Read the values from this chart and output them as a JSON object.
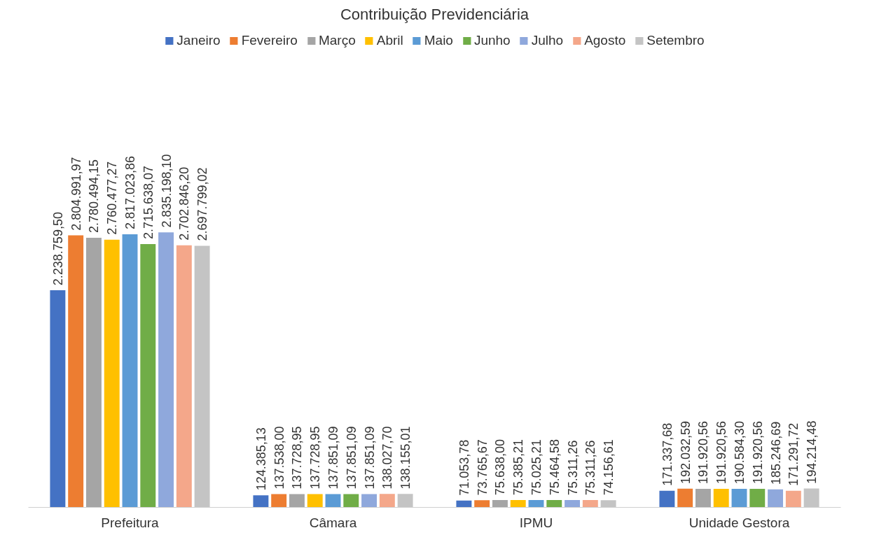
{
  "chart_data": {
    "type": "bar",
    "title": "Contribuição Previdenciária",
    "categories": [
      "Prefeitura",
      "Câmara",
      "IPMU",
      "Unidade Gestora"
    ],
    "grid": false,
    "legend": "top",
    "series": [
      {
        "name": "Janeiro",
        "color": "#4472c4",
        "values": [
          2238759.5,
          124385.13,
          71053.78,
          171337.68
        ],
        "value_labels": [
          "2.238.759,50",
          "124.385,13",
          "71.053,78",
          "171.337,68"
        ]
      },
      {
        "name": "Fevereiro",
        "color": "#ed7d31",
        "values": [
          2804991.97,
          137538.0,
          73765.67,
          192032.59
        ],
        "value_labels": [
          "2.804.991,97",
          "137.538,00",
          "73.765,67",
          "192.032,59"
        ]
      },
      {
        "name": "Março",
        "color": "#a5a5a5",
        "values": [
          2780494.15,
          137728.95,
          75638.0,
          191920.56
        ],
        "value_labels": [
          "2.780.494,15",
          "137.728,95",
          "75.638,00",
          "191.920,56"
        ]
      },
      {
        "name": "Abril",
        "color": "#ffc000",
        "values": [
          2760477.27,
          137728.95,
          75385.21,
          191920.56
        ],
        "value_labels": [
          "2.760.477,27",
          "137.728,95",
          "75.385,21",
          "191.920,56"
        ]
      },
      {
        "name": "Maio",
        "color": "#5b9bd5",
        "values": [
          2817023.86,
          137851.09,
          75025.21,
          190584.3
        ],
        "value_labels": [
          "2.817.023,86",
          "137.851,09",
          "75.025,21",
          "190.584,30"
        ]
      },
      {
        "name": "Junho",
        "color": "#70ad47",
        "values": [
          2715638.07,
          137851.09,
          75464.58,
          191920.56
        ],
        "value_labels": [
          "2.715.638,07",
          "137.851,09",
          "75.464,58",
          "191.920,56"
        ]
      },
      {
        "name": "Julho",
        "color": "#8fa8dc",
        "values": [
          2835198.1,
          137851.09,
          75311.26,
          185246.69
        ],
        "value_labels": [
          "2.835.198,10",
          "137.851,09",
          "75.311,26",
          "185.246,69"
        ]
      },
      {
        "name": "Agosto",
        "color": "#f4a78a",
        "values": [
          2702846.2,
          138027.7,
          75311.26,
          171291.72
        ],
        "value_labels": [
          "2.702.846,20",
          "138.027,70",
          "75.311,26",
          "171.291,72"
        ]
      },
      {
        "name": "Setembro",
        "color": "#c4c4c4",
        "values": [
          2697799.02,
          138155.01,
          74156.61,
          194214.48
        ],
        "value_labels": [
          "2.697.799,02",
          "138.155,01",
          "74.156,61",
          "194.214,48"
        ]
      }
    ]
  }
}
